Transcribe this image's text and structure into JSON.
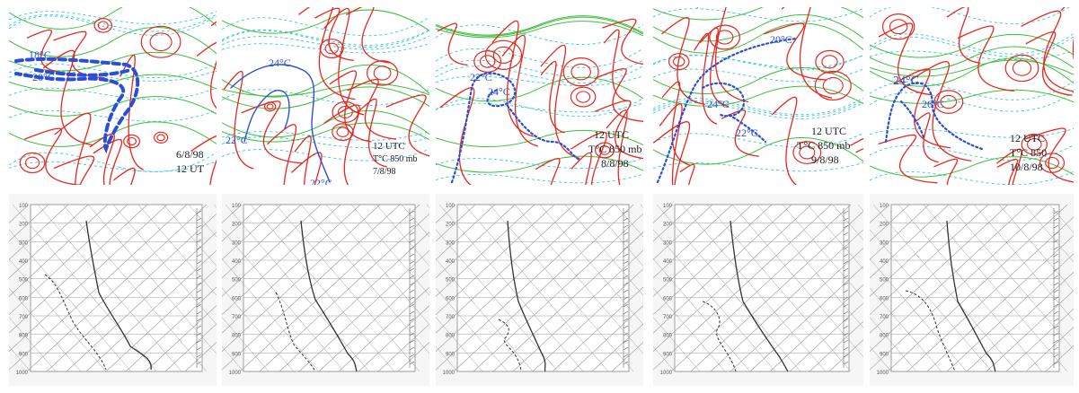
{
  "maps": [
    {
      "labels": {
        "iso_a": "18°C",
        "iso_b": "20°C"
      },
      "caption": {
        "line1": "6/8/98",
        "line2": "12 UT"
      }
    },
    {
      "labels": {
        "iso_a": "24°C",
        "iso_b": "22°C",
        "iso_c": "22°C"
      },
      "caption": {
        "line1": "12 UTC",
        "line2": "T°C 850 mb",
        "line3": "7/8/98"
      }
    },
    {
      "labels": {
        "iso_a": "22°C",
        "iso_b": "24°C"
      },
      "caption": {
        "line1": "12 UTC",
        "line2": "T°C 850 mb",
        "line3": "8/8/98"
      }
    },
    {
      "labels": {
        "iso_a": "20°C",
        "iso_b": "24°C",
        "iso_c": "22°C"
      },
      "caption": {
        "line1": "12 UTC",
        "line2": "T°C 850 mb",
        "line3": "9/8/98"
      }
    },
    {
      "labels": {
        "iso_a": "24°C",
        "iso_b": "26°C"
      },
      "caption": {
        "line1": "12 UTC",
        "line2": "T°C 850",
        "line3": "10/8/98"
      }
    }
  ],
  "soundings": {
    "pressure_ticks": [
      "100",
      "200",
      "300",
      "400",
      "500",
      "600",
      "700",
      "800",
      "900",
      "1000"
    ],
    "colors": {
      "line": "#333333",
      "grid": "#9a9a9a",
      "paper": "#f6f6f6"
    }
  },
  "colors": {
    "streamline": "#e8261e",
    "isotherm": "#2a4fd6",
    "contour_green": "#3cbf3c",
    "dashed_cyan": "#2fc9d6",
    "caption": "#1a1a1a"
  }
}
